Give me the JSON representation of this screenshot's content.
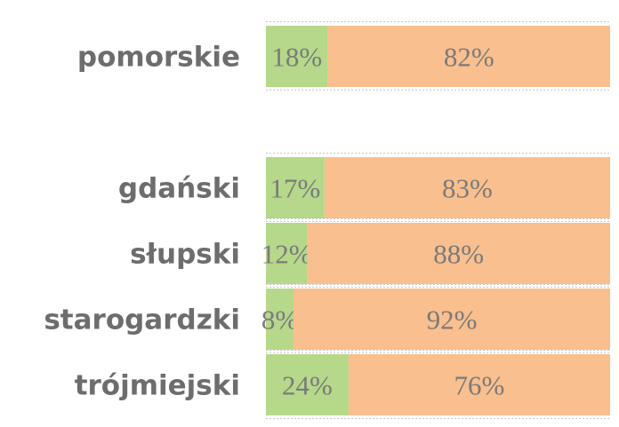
{
  "chart_data": {
    "type": "bar",
    "orientation": "horizontal",
    "stacked": true,
    "normalized": true,
    "categories": [
      "pomorskie",
      "gdański",
      "słupski",
      "starogardzki",
      "trójmiejski"
    ],
    "series": [
      {
        "values": [
          18,
          17,
          12,
          8,
          24
        ]
      },
      {
        "values": [
          82,
          83,
          88,
          92,
          76
        ]
      }
    ],
    "data_labels": [
      [
        "18%",
        "17%",
        "12%",
        "8%",
        "24%"
      ],
      [
        "82%",
        "83%",
        "88%",
        "92%",
        "76%"
      ]
    ],
    "xlim": [
      0,
      100
    ],
    "grid": false,
    "legend": "none"
  },
  "colors": {
    "series_1": "#b5d88a",
    "series_2": "#f9bf8e",
    "label_text": "#6d6d6d",
    "value_text": "#7a7a7a"
  }
}
